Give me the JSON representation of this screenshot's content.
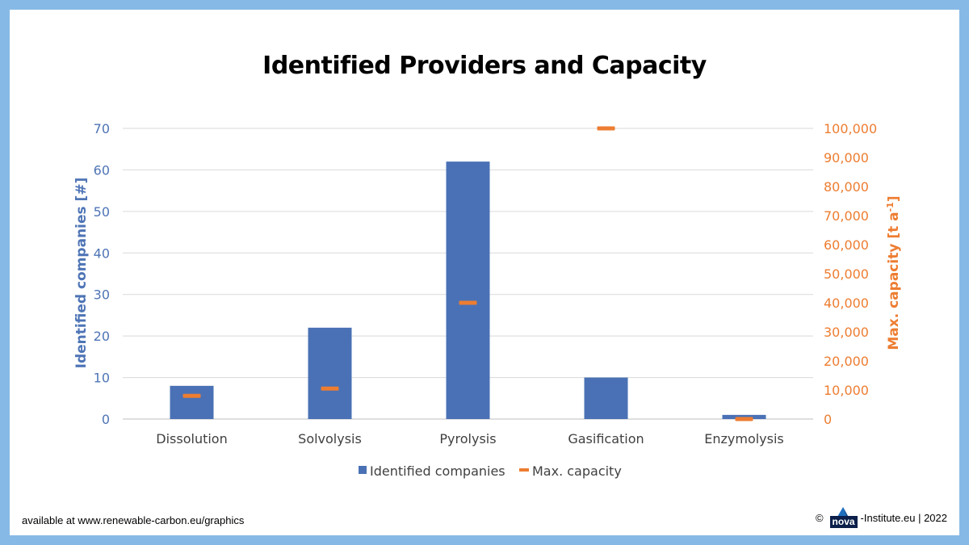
{
  "title": "Identified Providers and Capacity",
  "colors": {
    "bar": "#4a71b5",
    "marker": "#ed7d31",
    "left_axis": "#4e74b5",
    "right_axis": "#ed7d31",
    "grid": "#d9d9d9",
    "frame": "#86b9e6"
  },
  "chart_data": {
    "type": "bar",
    "categories": [
      "Dissolution",
      "Solvolysis",
      "Pyrolysis",
      "Gasification",
      "Enzymolysis"
    ],
    "series": [
      {
        "name": "Identified companies",
        "type": "bar",
        "axis": "left",
        "values": [
          8,
          22,
          62,
          10,
          1
        ]
      },
      {
        "name": "Max. capacity",
        "type": "marker",
        "axis": "right",
        "values": [
          8000,
          10500,
          40000,
          100000,
          0
        ]
      }
    ],
    "ylabel": "Identified companies [#]",
    "ylabel_right_main": "Max. capacity [t a",
    "ylabel_right_sup": "-1",
    "ylabel_right_end": "]",
    "ylim": [
      0,
      70
    ],
    "ylim_right": [
      0,
      100000
    ],
    "yticks": [
      "0",
      "10",
      "20",
      "30",
      "40",
      "50",
      "60",
      "70"
    ],
    "yticks_right": [
      "0",
      "10,000",
      "20,000",
      "30,000",
      "40,000",
      "50,000",
      "60,000",
      "70,000",
      "80,000",
      "90,000",
      "100,000"
    ],
    "grid": true,
    "legend": "bottom-center"
  },
  "footer": {
    "prefix": "available at ",
    "url": "www.renewable-carbon.eu/graphics",
    "copyright": "©",
    "logo_text": "nova",
    "institute": "-Institute.eu | 2022"
  }
}
